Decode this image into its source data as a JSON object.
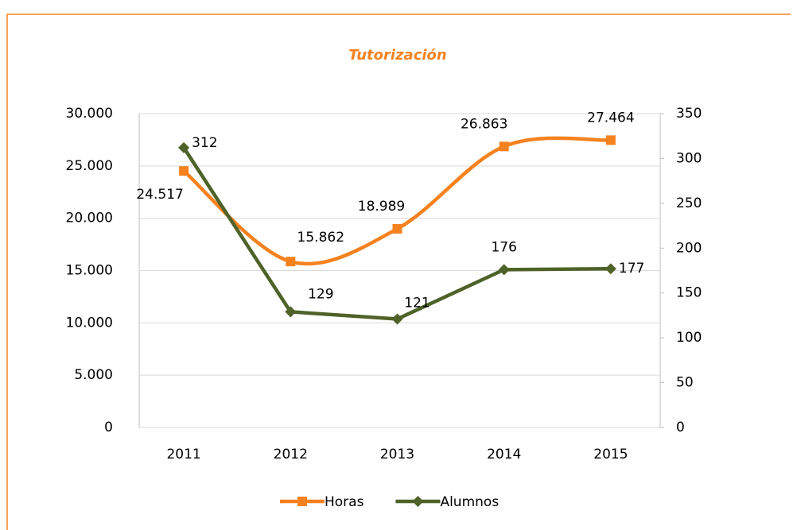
{
  "chart_data": {
    "type": "line",
    "title": "Tutorización",
    "categories": [
      "2011",
      "2012",
      "2013",
      "2014",
      "2015"
    ],
    "series": [
      {
        "name": "Horas",
        "color": "#f5821f",
        "smooth": true,
        "marker": "square",
        "values": [
          24517,
          15862,
          18989,
          26863,
          27464
        ],
        "value_labels": [
          "24.517",
          "15.862",
          "18.989",
          "26.863",
          "27.464"
        ]
      },
      {
        "name": "Alumnos",
        "color": "#4f6228",
        "axis": "y2",
        "smooth": false,
        "marker": "diamond",
        "values": [
          312,
          129,
          121,
          176,
          177
        ]
      }
    ],
    "ylim": [
      0,
      30000
    ],
    "yticks": [
      0,
      {
        "value": 5000,
        "label": "5.000"
      },
      {
        "value": 10000,
        "label": "10.000"
      },
      {
        "value": 15000,
        "label": "15.000"
      },
      {
        "value": 20000,
        "label": "20.000"
      },
      {
        "value": 25000,
        "label": "25.000"
      },
      {
        "value": 30000,
        "label": "30.000"
      }
    ],
    "y2lim": [
      0,
      350
    ],
    "y2ticks": [
      0,
      50,
      100,
      150,
      200,
      250,
      300,
      350
    ],
    "grid": true,
    "legend": "bottom"
  }
}
